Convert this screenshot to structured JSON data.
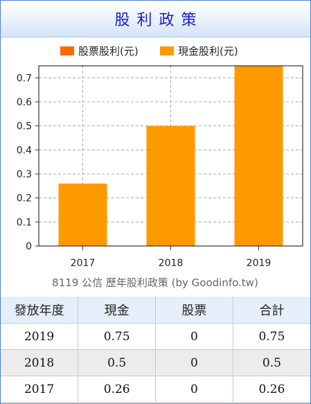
{
  "header": {
    "title": "股利政策"
  },
  "chart_data": {
    "type": "bar",
    "categories": [
      "2017",
      "2018",
      "2019"
    ],
    "series": [
      {
        "name": "股票股利(元)",
        "color": "#ff6a00",
        "values": [
          0,
          0,
          0
        ]
      },
      {
        "name": "現金股利(元)",
        "color": "#ff9900",
        "values": [
          0.26,
          0.5,
          0.75
        ]
      }
    ],
    "stacked": true,
    "ylim": [
      0,
      0.75
    ],
    "yticks": [
      "0",
      "0.1",
      "0.2",
      "0.3",
      "0.4",
      "0.5",
      "0.6",
      "0.7"
    ],
    "grid": true,
    "legend": "top",
    "caption": "8119 公信 歷年股利政策 (by Goodinfo.tw)"
  },
  "table": {
    "headers": [
      "發放年度",
      "現金",
      "股票",
      "合計"
    ],
    "rows": [
      [
        "2019",
        "0.75",
        "0",
        "0.75"
      ],
      [
        "2018",
        "0.5",
        "0",
        "0.5"
      ],
      [
        "2017",
        "0.26",
        "0",
        "0.26"
      ]
    ]
  }
}
